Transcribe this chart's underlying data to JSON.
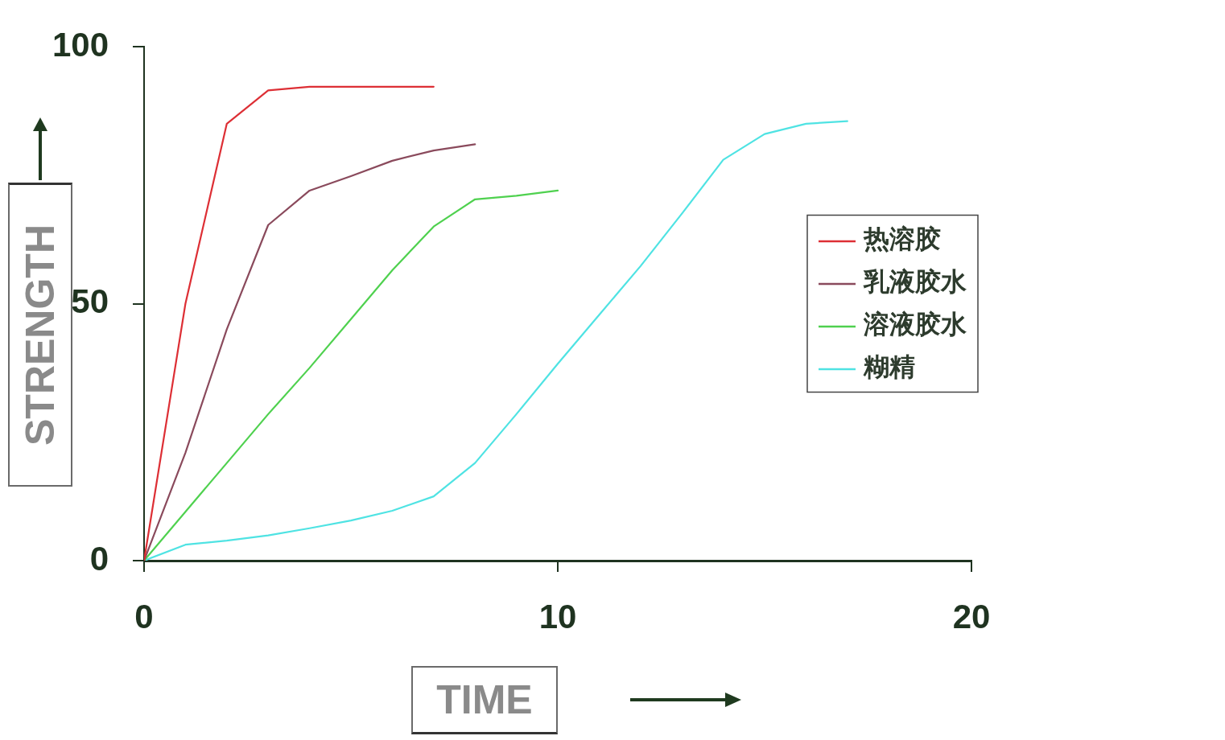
{
  "chart_data": {
    "type": "line",
    "xlabel": "TIME",
    "ylabel": "STRENGTH",
    "xlim": [
      0,
      20
    ],
    "xticks": [
      0,
      10,
      20
    ],
    "ylim": [
      0,
      100
    ],
    "yticks": [
      0,
      50,
      100
    ],
    "grid": false,
    "legend": "right",
    "marker": "none",
    "line_style": "solid",
    "series": [
      {
        "name": "热溶胶",
        "color": "#dd2f35",
        "x": [
          0,
          1,
          2,
          3,
          4,
          5,
          6,
          7
        ],
        "values": [
          0,
          50,
          85,
          91.5,
          92.2,
          92.2,
          92.2,
          92.2
        ]
      },
      {
        "name": "乳液胶水",
        "color": "#8a4a5c",
        "x": [
          0,
          1,
          2,
          3,
          4,
          5,
          6,
          7,
          8
        ],
        "values": [
          0,
          21,
          45,
          65.3,
          72,
          74.8,
          77.8,
          79.8,
          81
        ]
      },
      {
        "name": "溶液胶水",
        "color": "#4fd14f",
        "x": [
          0,
          1,
          2,
          3,
          4,
          5,
          6,
          7,
          8,
          9,
          10
        ],
        "values": [
          0,
          9.5,
          19,
          28.5,
          37.5,
          47,
          56.5,
          65,
          70.3,
          71,
          72
        ]
      },
      {
        "name": "糊精",
        "color": "#4fe3e3",
        "x": [
          0,
          1,
          2,
          3,
          4,
          5,
          6,
          7,
          8,
          9,
          10,
          11,
          12,
          13,
          14,
          15,
          16,
          17
        ],
        "values": [
          0,
          3.1,
          3.9,
          4.9,
          6.3,
          7.8,
          9.7,
          12.5,
          19,
          28.5,
          38.3,
          47.8,
          57.3,
          67.5,
          78,
          83,
          85,
          85.5
        ]
      }
    ]
  }
}
